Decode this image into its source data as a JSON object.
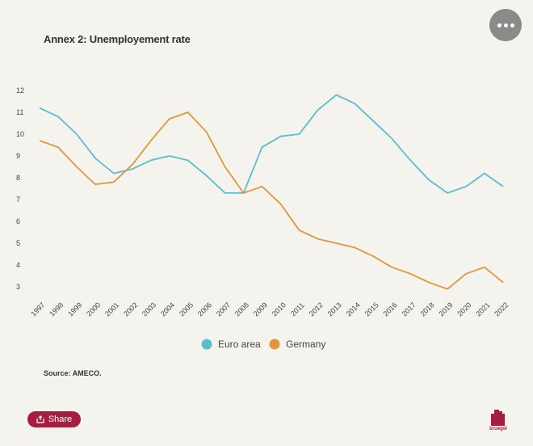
{
  "header": {
    "title": "Annex 2: Unemployement rate"
  },
  "footer": {
    "source": "Source: AMECO.",
    "share_label": "Share",
    "logo_text": "bruegel"
  },
  "icons": {
    "more": "more-horizontal-icon",
    "share": "share-icon"
  },
  "colors": {
    "euro_area": "#5bbcd1",
    "germany": "#e0973a",
    "brand": "#a51e3f"
  },
  "chart_data": {
    "type": "line",
    "title": "Annex 2: Unemployement rate",
    "xlabel": "",
    "ylabel": "",
    "ylim": [
      3,
      12
    ],
    "yticks": [
      3,
      4,
      5,
      6,
      7,
      8,
      9,
      10,
      11,
      12
    ],
    "x": [
      "1997",
      "1998",
      "1999",
      "2000",
      "2001",
      "2002",
      "2003",
      "2004",
      "2005",
      "2006",
      "2007",
      "2008",
      "2009",
      "2010",
      "2011",
      "2012",
      "2013",
      "2014",
      "2015",
      "2016",
      "2017",
      "2018",
      "2019",
      "2020",
      "2021",
      "2022"
    ],
    "grid": false,
    "legend": "bottom-center",
    "series": [
      {
        "name": "Euro area",
        "color": "#5bbcd1",
        "values": [
          11.2,
          10.8,
          10.0,
          8.9,
          8.2,
          8.4,
          8.8,
          9.0,
          8.8,
          8.1,
          7.3,
          7.3,
          9.4,
          9.9,
          10.0,
          11.1,
          11.8,
          11.4,
          10.6,
          9.8,
          8.8,
          7.9,
          7.3,
          7.6,
          8.2,
          7.6
        ]
      },
      {
        "name": "Germany",
        "color": "#e0973a",
        "values": [
          9.7,
          9.4,
          8.5,
          7.7,
          7.8,
          8.6,
          9.7,
          10.7,
          11.0,
          10.1,
          8.5,
          7.3,
          7.6,
          6.8,
          5.6,
          5.2,
          5.0,
          4.8,
          4.4,
          3.9,
          3.6,
          3.2,
          2.9,
          3.6,
          3.9,
          3.2
        ]
      }
    ]
  }
}
